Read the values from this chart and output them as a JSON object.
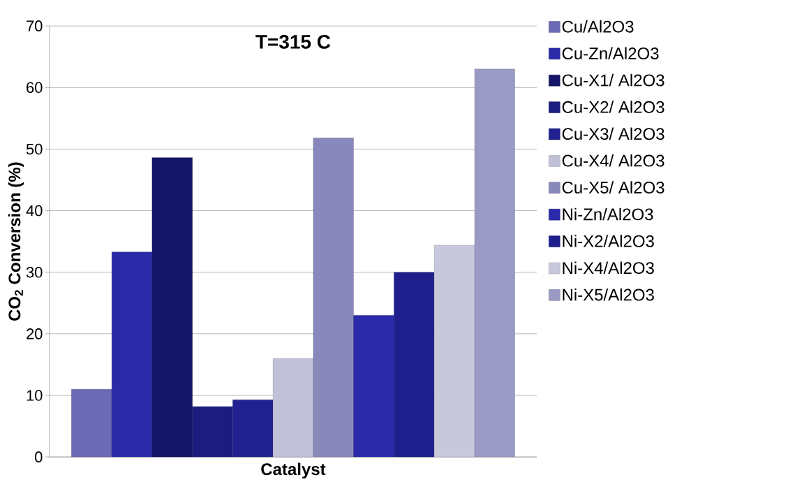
{
  "chart_data": {
    "type": "bar",
    "title": "T=315 C",
    "xlabel": "Catalyst",
    "ylabel": "CO$_{2}$ Conversion (%)",
    "categories": [
      null
    ],
    "series": [
      {
        "name": "Cu/Al2O3",
        "color": "#6a6ab5",
        "values": [
          11
        ]
      },
      {
        "name": "Cu-Zn/Al2O3",
        "color": "#2a2aa8",
        "values": [
          33.3
        ]
      },
      {
        "name": "Cu-X1/ Al2O3",
        "color": "#15156a",
        "values": [
          48.6
        ]
      },
      {
        "name": "Cu-X2/ Al2O3",
        "color": "#1c1c80",
        "values": [
          8.2
        ]
      },
      {
        "name": "Cu-X3/ Al2O3",
        "color": "#202090",
        "values": [
          9.3
        ]
      },
      {
        "name": "Cu-X4/ Al2O3",
        "color": "#c0c0d8",
        "values": [
          16
        ]
      },
      {
        "name": "Cu-X5/ Al2O3",
        "color": "#8888bb",
        "values": [
          51.8
        ]
      },
      {
        "name": "Ni-Zn/Al2O3",
        "color": "#2a2aaa",
        "values": [
          23
        ]
      },
      {
        "name": "Ni-X2/Al2O3",
        "color": "#1e1e8c",
        "values": [
          30
        ]
      },
      {
        "name": "Ni-X4/Al2O3",
        "color": "#c8c8dc",
        "values": [
          34.4
        ]
      },
      {
        "name": "Ni-X5/Al2O3",
        "color": "#9a9ac4",
        "values": [
          63
        ]
      }
    ],
    "ylim": [
      0,
      70
    ],
    "yticks": [
      0,
      10,
      20,
      30,
      40,
      50,
      60,
      70
    ],
    "grid": "y",
    "legend": "right"
  }
}
